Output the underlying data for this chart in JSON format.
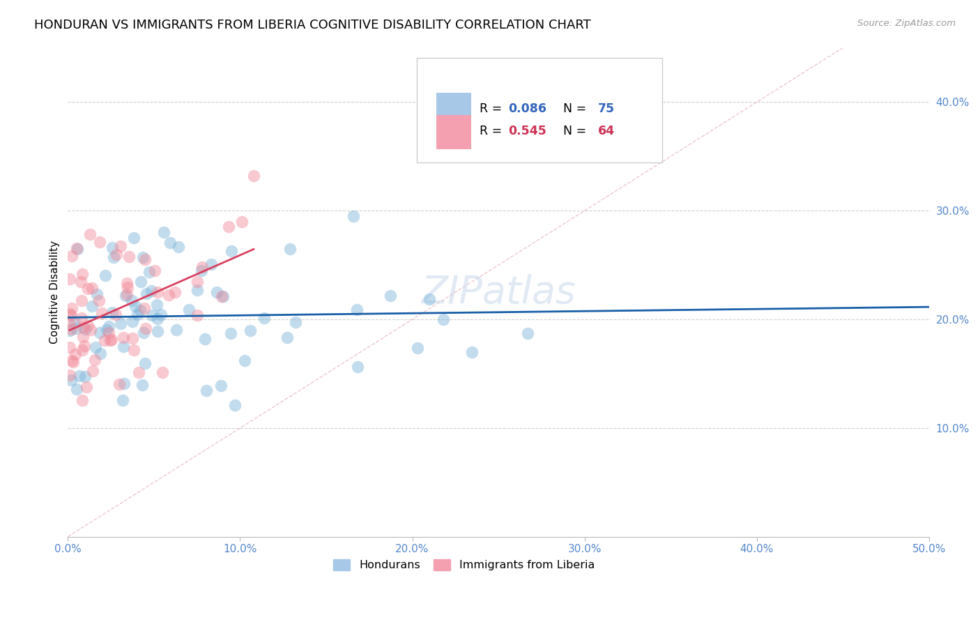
{
  "title": "HONDURAN VS IMMIGRANTS FROM LIBERIA COGNITIVE DISABILITY CORRELATION CHART",
  "source": "Source: ZipAtlas.com",
  "ylabel": "Cognitive Disability",
  "xlim": [
    0.0,
    0.5
  ],
  "ylim": [
    0.0,
    0.45
  ],
  "xticks": [
    0.0,
    0.1,
    0.2,
    0.3,
    0.4,
    0.5
  ],
  "yticks": [
    0.1,
    0.2,
    0.3,
    0.4
  ],
  "blue_color": "#7ab3d9",
  "pink_color": "#f08898",
  "blue_line_color": "#1a5fa8",
  "pink_line_color": "#d94060",
  "diag_line_color": "#e8b4c0",
  "watermark": "ZIPatlas",
  "blue_scatter_seed": 7,
  "pink_scatter_seed": 13,
  "background_color": "#ffffff",
  "grid_color": "#cccccc",
  "tick_color": "#5588cc",
  "spine_color": "#bbbbbb"
}
